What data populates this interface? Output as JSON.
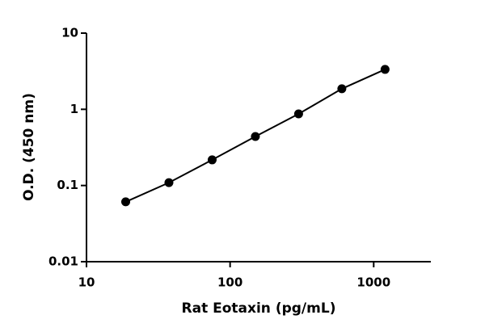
{
  "chart_data": {
    "type": "scatter",
    "x_label": "Rat Eotaxin (pg/mL)",
    "y_label": "O.D. (450 nm)",
    "x": [
      18.75,
      37.5,
      75,
      150,
      300,
      600,
      1200
    ],
    "series": [
      {
        "color": "#000000",
        "values": [
          0.061,
          0.109,
          0.217,
          0.44,
          0.87,
          1.86,
          3.34
        ]
      }
    ],
    "xlim": [
      10,
      2500
    ],
    "ylim": [
      0.01,
      10
    ],
    "xticks": [
      10,
      100,
      1000
    ],
    "yticks": [
      0.01,
      0.1,
      1,
      10
    ],
    "x_log": true,
    "y_log": true,
    "line": true
  }
}
